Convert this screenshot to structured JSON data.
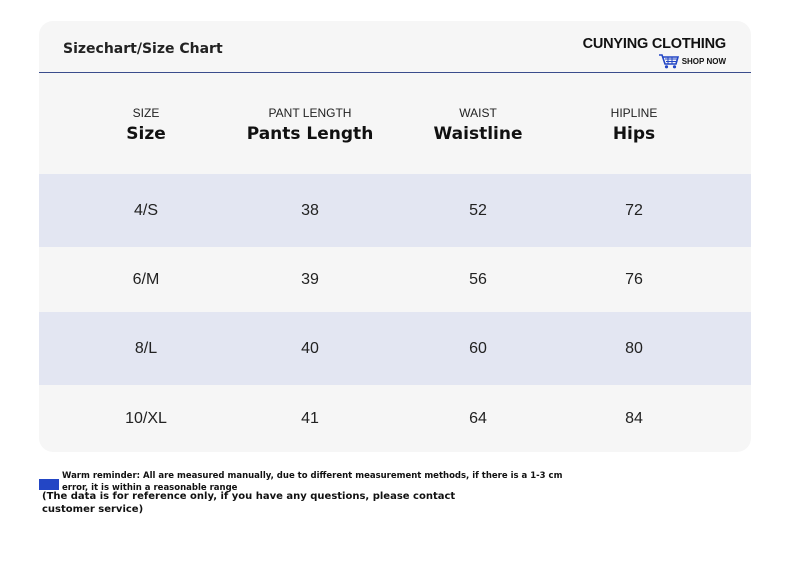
{
  "header": {
    "title": "Sizechart/Size Chart",
    "brand": "CUNYING CLOTHING",
    "shop_now": "SHOP NOW",
    "brand_icon": "shopping-cart-icon"
  },
  "table": {
    "columns": [
      {
        "small": "SIZE",
        "big": "Size"
      },
      {
        "small": "PANT LENGTH",
        "big": "Pants Length"
      },
      {
        "small": "WAIST",
        "big": "Waistline"
      },
      {
        "small": "HIPLINE",
        "big": "Hips"
      }
    ],
    "rows": [
      [
        "4/S",
        "38",
        "52",
        "72"
      ],
      [
        "6/M",
        "39",
        "56",
        "76"
      ],
      [
        "8/L",
        "40",
        "60",
        "80"
      ],
      [
        "10/XL",
        "41",
        "64",
        "84"
      ]
    ]
  },
  "footer": {
    "reminder": "Warm reminder: All are measured manually, due to different measurement methods, if there is a 1-3 cm error, it is within a reasonable range",
    "note": "(The data is for reference only, if you have any questions, please contact customer service)"
  },
  "colors": {
    "accent": "#2346c5",
    "row_alt": "#e3e6f2",
    "card_bg": "#f6f6f6",
    "divider": "#3a4c8c"
  }
}
